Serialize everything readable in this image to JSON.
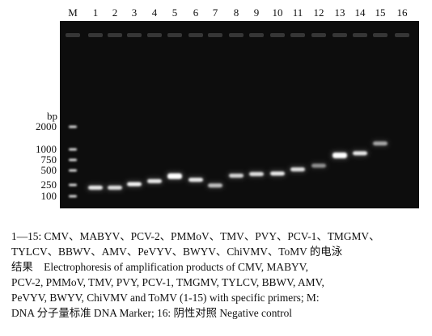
{
  "gel": {
    "lanes": [
      "M",
      "1",
      "2",
      "3",
      "4",
      "5",
      "6",
      "7",
      "8",
      "9",
      "10",
      "11",
      "12",
      "13",
      "14",
      "15",
      "16"
    ],
    "y_axis_unit": "bp",
    "marker_sizes_bp": [
      2000,
      1000,
      750,
      500,
      250,
      100
    ],
    "marker_labels": [
      "2000",
      "1000",
      "750",
      "500",
      "250",
      "100"
    ],
    "bands_bp": [
      {
        "lane": "1",
        "bp": 200,
        "intensity": 0.9
      },
      {
        "lane": "2",
        "bp": 200,
        "intensity": 0.85
      },
      {
        "lane": "3",
        "bp": 260,
        "intensity": 0.95
      },
      {
        "lane": "4",
        "bp": 300,
        "intensity": 0.9
      },
      {
        "lane": "5",
        "bp": 380,
        "intensity": 1.0
      },
      {
        "lane": "6",
        "bp": 320,
        "intensity": 0.9
      },
      {
        "lane": "7",
        "bp": 240,
        "intensity": 0.7
      },
      {
        "lane": "8",
        "bp": 390,
        "intensity": 0.8
      },
      {
        "lane": "9",
        "bp": 420,
        "intensity": 0.85
      },
      {
        "lane": "10",
        "bp": 430,
        "intensity": 0.9
      },
      {
        "lane": "11",
        "bp": 520,
        "intensity": 0.85
      },
      {
        "lane": "12",
        "bp": 600,
        "intensity": 0.5
      },
      {
        "lane": "13",
        "bp": 850,
        "intensity": 1.0
      },
      {
        "lane": "14",
        "bp": 900,
        "intensity": 0.9
      },
      {
        "lane": "15",
        "bp": 1200,
        "intensity": 0.6
      }
    ],
    "colors": {
      "gel_background": "#0d0d0d",
      "band": "#ffffff",
      "well": "#5a5a5a"
    }
  },
  "caption": {
    "line1": "1—15: CMV、MABYV、PCV-2、PMMoV、TMV、PVY、PCV-1、TMGMV、",
    "line2": "TYLCV、BBWV、AMV、PeVYV、BWYV、ChiVMV、ToMV 的电泳",
    "line3": "结果    Electrophoresis of amplification products of CMV, MABYV,",
    "line4": "PCV-2, PMMoV, TMV, PVY, PCV-1, TMGMV, TYLCV, BBWV, AMV,",
    "line5": "PeVYV, BWYV, ChiVMV and ToMV (1-15) with specific primers; M:",
    "line6": "DNA 分子量标准 DNA Marker; 16: 阴性对照 Negative control"
  }
}
